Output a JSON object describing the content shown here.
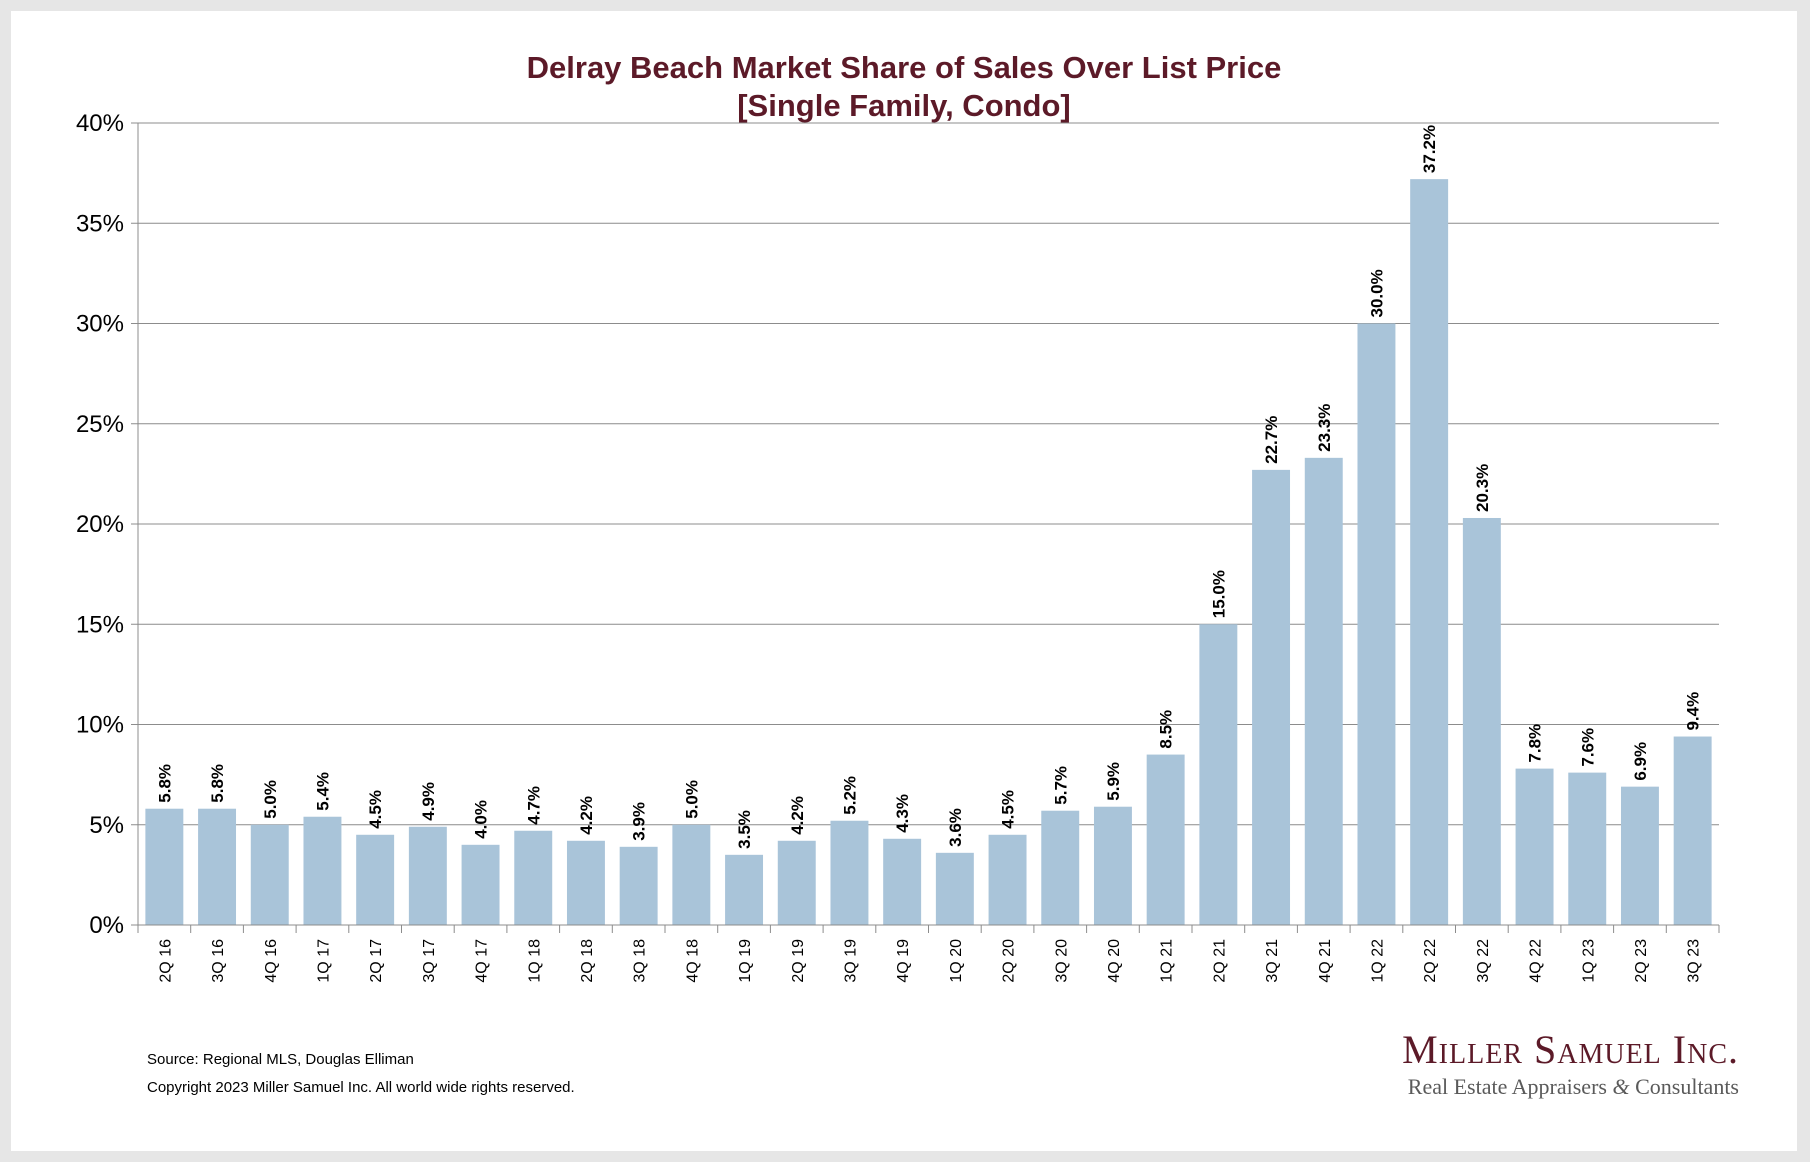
{
  "chart_data": {
    "type": "bar",
    "title": "Delray Beach Market Share of Sales Over List Price",
    "subtitle": "[Single Family, Condo]",
    "categories": [
      "2Q 16",
      "3Q 16",
      "4Q 16",
      "1Q 17",
      "2Q 17",
      "3Q 17",
      "4Q 17",
      "1Q 18",
      "2Q 18",
      "3Q 18",
      "4Q 18",
      "1Q 19",
      "2Q 19",
      "3Q 19",
      "4Q 19",
      "1Q 20",
      "2Q 20",
      "3Q 20",
      "4Q 20",
      "1Q 21",
      "2Q 21",
      "3Q 21",
      "4Q 21",
      "1Q 22",
      "2Q 22",
      "3Q 22",
      "4Q 22",
      "1Q 23",
      "2Q 23",
      "3Q 23"
    ],
    "values": [
      5.8,
      5.8,
      5.0,
      5.4,
      4.5,
      4.9,
      4.0,
      4.7,
      4.2,
      3.9,
      5.0,
      3.5,
      4.2,
      5.2,
      4.3,
      3.6,
      4.5,
      5.7,
      5.9,
      8.5,
      15.0,
      22.7,
      23.3,
      30.0,
      37.2,
      20.3,
      7.8,
      7.6,
      6.9,
      9.4
    ],
    "data_labels": [
      "5.8%",
      "5.8%",
      "5.0%",
      "5.4%",
      "4.5%",
      "4.9%",
      "4.0%",
      "4.7%",
      "4.2%",
      "3.9%",
      "5.0%",
      "3.5%",
      "4.2%",
      "5.2%",
      "4.3%",
      "3.6%",
      "4.5%",
      "5.7%",
      "5.9%",
      "8.5%",
      "15.0%",
      "22.7%",
      "23.3%",
      "30.0%",
      "37.2%",
      "20.3%",
      "7.8%",
      "7.6%",
      "6.9%",
      "9.4%"
    ],
    "y_ticks": [
      "0%",
      "5%",
      "10%",
      "15%",
      "20%",
      "25%",
      "30%",
      "35%",
      "40%"
    ],
    "xlabel": "",
    "ylabel": "",
    "ylim": [
      0,
      40
    ],
    "grid": true,
    "legend": "none",
    "bar_color": "#a9c4d9",
    "title_color": "#5c1a28"
  },
  "footer": {
    "source": "Source: Regional MLS, Douglas Elliman",
    "copyright": "Copyright 2023 Miller Samuel Inc.  All world wide rights reserved."
  },
  "logo": {
    "name": "Miller Samuel Inc.",
    "tagline_left": "Real Estate Appraisers",
    "ampersand": "&",
    "tagline_right": "Consultants"
  }
}
